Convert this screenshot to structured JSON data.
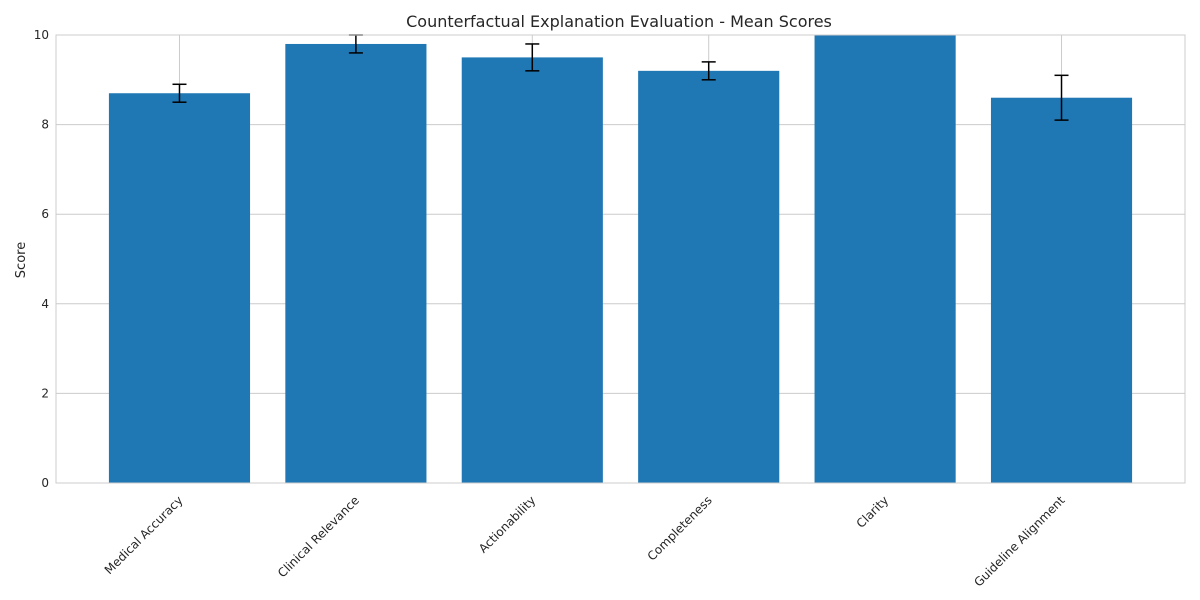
{
  "chart_data": {
    "type": "bar",
    "title": "Counterfactual Explanation Evaluation - Mean Scores",
    "xlabel": "",
    "ylabel": "Score",
    "categories": [
      "Medical Accuracy",
      "Clinical Relevance",
      "Actionability",
      "Completeness",
      "Clarity",
      "Guideline Alignment"
    ],
    "values": [
      8.7,
      9.8,
      9.5,
      9.2,
      10.0,
      8.6
    ],
    "error": [
      0.2,
      0.2,
      0.3,
      0.2,
      0.0,
      0.5
    ],
    "ylim": [
      0,
      10
    ],
    "yticks": [
      0,
      2,
      4,
      6,
      8,
      10
    ],
    "grid": true,
    "colors": {
      "bar": "#1f77b4",
      "error_bar": "#000000",
      "grid": "#cccccc",
      "background": "#ffffff"
    }
  }
}
